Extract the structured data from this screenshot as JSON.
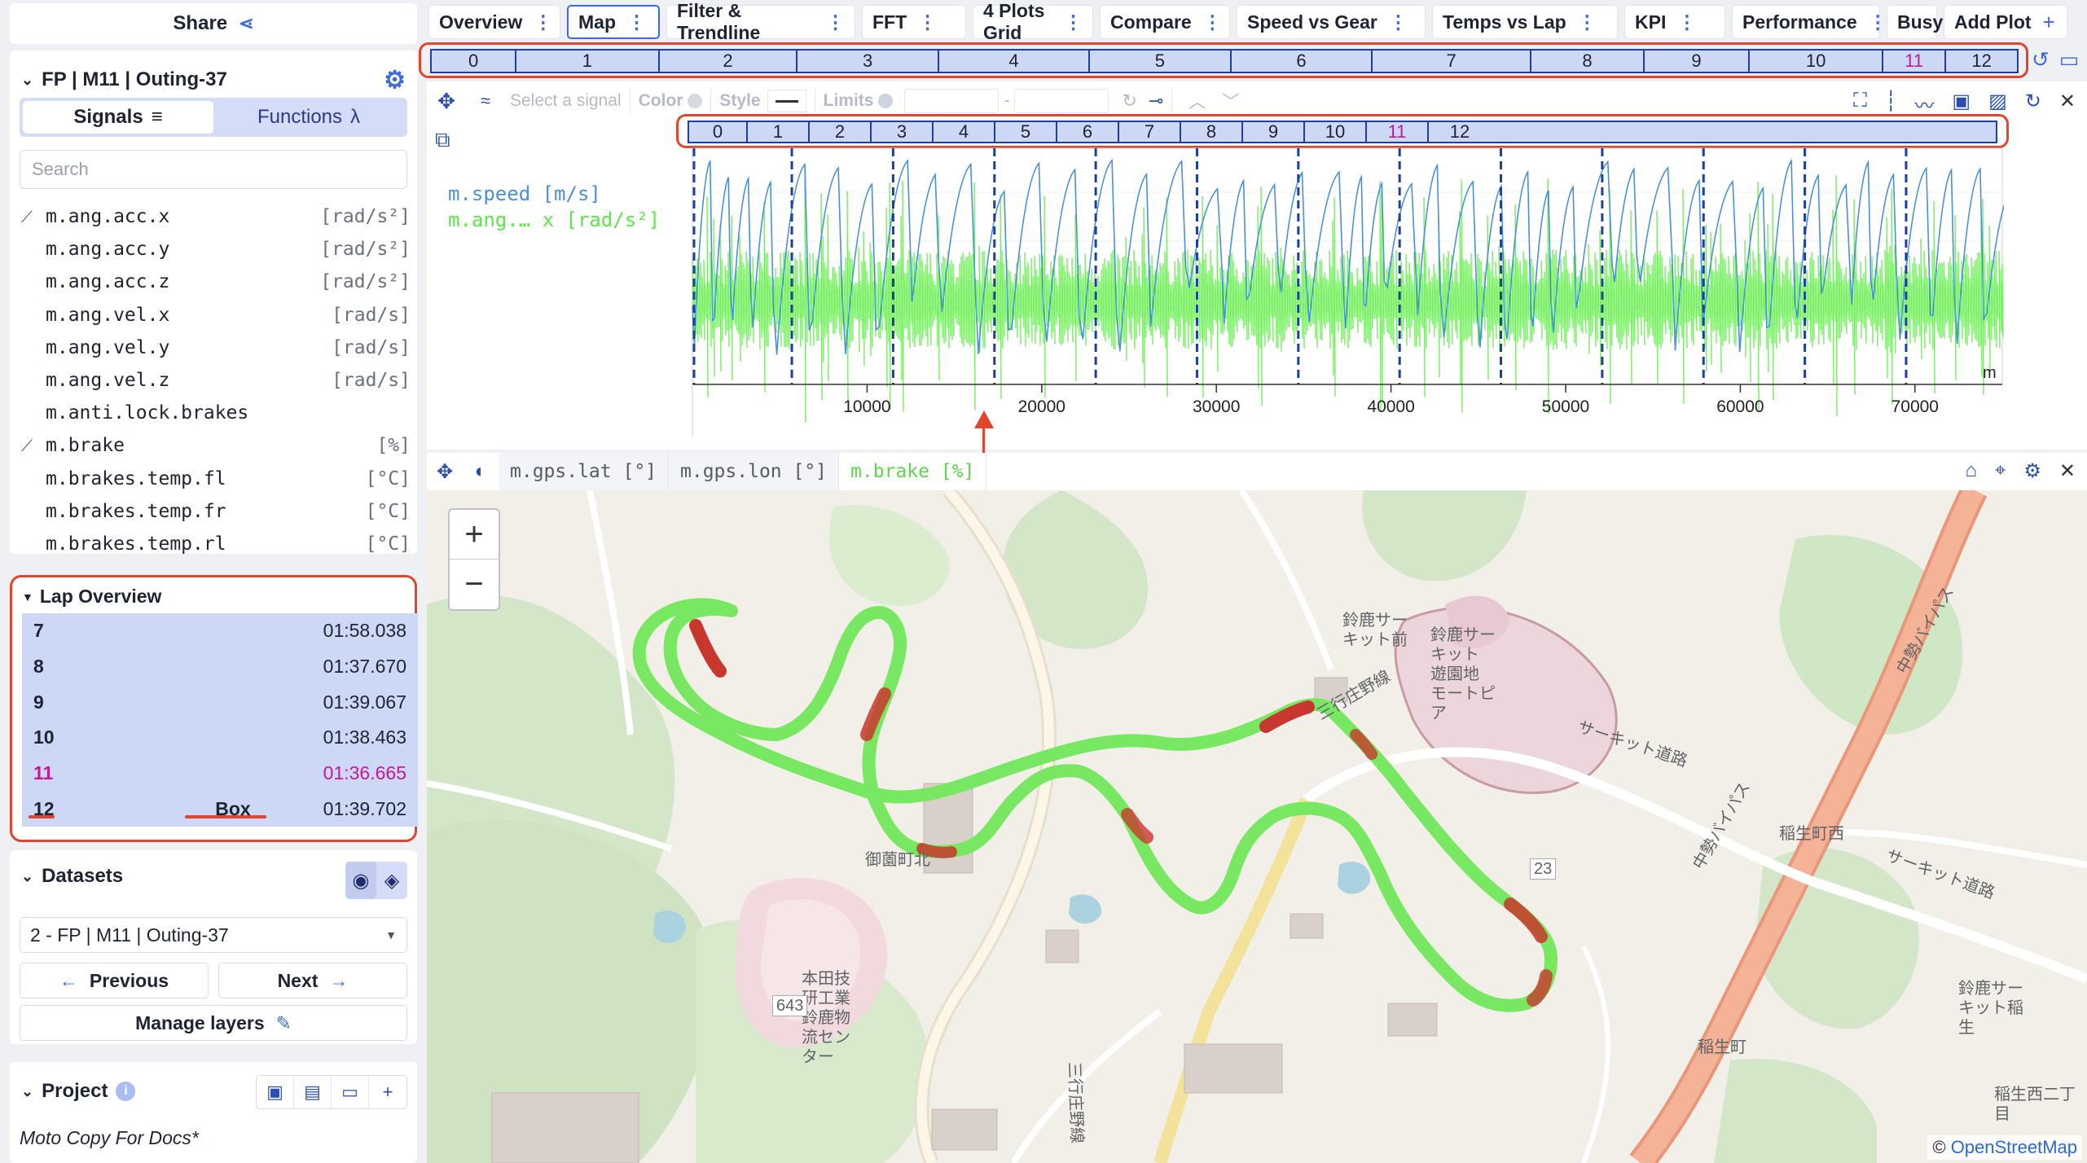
{
  "left": {
    "share_label": "Share",
    "session_title": "FP | M11 | Outing-37",
    "signals_tab": "Signals",
    "functions_tab": "Functions",
    "functions_symbol": "λ",
    "search_placeholder": "Search",
    "signals": [
      {
        "name": "m.ang.acc.x",
        "unit": "[rad/s²]",
        "plotted": true
      },
      {
        "name": "m.ang.acc.y",
        "unit": "[rad/s²]",
        "plotted": false
      },
      {
        "name": "m.ang.acc.z",
        "unit": "[rad/s²]",
        "plotted": false
      },
      {
        "name": "m.ang.vel.x",
        "unit": "[rad/s]",
        "plotted": false
      },
      {
        "name": "m.ang.vel.y",
        "unit": "[rad/s]",
        "plotted": false
      },
      {
        "name": "m.ang.vel.z",
        "unit": "[rad/s]",
        "plotted": false
      },
      {
        "name": "m.anti.lock.brakes",
        "unit": "",
        "plotted": false
      },
      {
        "name": "m.brake",
        "unit": "[%]",
        "plotted": true
      },
      {
        "name": "m.brakes.temp.fl",
        "unit": "[°C]",
        "plotted": false
      },
      {
        "name": "m.brakes.temp.fr",
        "unit": "[°C]",
        "plotted": false
      },
      {
        "name": "m.brakes.temp.rl",
        "unit": "[°C]",
        "plotted": false
      }
    ],
    "lap_overview_title": "Lap Overview",
    "laps": [
      {
        "num": "7",
        "tag": "",
        "time": "01:58.038"
      },
      {
        "num": "8",
        "tag": "",
        "time": "01:37.670"
      },
      {
        "num": "9",
        "tag": "",
        "time": "01:39.067"
      },
      {
        "num": "10",
        "tag": "",
        "time": "01:38.463"
      },
      {
        "num": "11",
        "tag": "",
        "time": "01:36.665"
      },
      {
        "num": "12",
        "tag": "Box",
        "time": "01:39.702"
      }
    ],
    "datasets_title": "Datasets",
    "dataset_selected": "2 - FP | M11 | Outing-37",
    "previous_label": "Previous",
    "next_label": "Next",
    "manage_layers_label": "Manage layers",
    "project_title": "Project",
    "project_name": "Moto Copy For Docs*"
  },
  "tabs": [
    {
      "label": "Overview"
    },
    {
      "label": "Map",
      "active": true
    },
    {
      "label": "Filter & Trendline"
    },
    {
      "label": "FFT"
    },
    {
      "label": "4 Plots Grid"
    },
    {
      "label": "Compare"
    },
    {
      "label": "Speed vs Gear"
    },
    {
      "label": "Temps vs Lap"
    },
    {
      "label": "KPI"
    },
    {
      "label": "Performance"
    },
    {
      "label": "Busy"
    },
    {
      "label": "Add Plot"
    }
  ],
  "lap_strip": [
    "0",
    "1",
    "2",
    "3",
    "4",
    "5",
    "6",
    "7",
    "8",
    "9",
    "10",
    "11",
    "12"
  ],
  "best_lap": "11",
  "plot": {
    "toolbar": {
      "select_signal": "Select a signal",
      "color": "Color",
      "style": "Style",
      "limits": "Limits",
      "dash": "-"
    },
    "legend": [
      {
        "label": "m.speed [m/s]",
        "color": "#4a90d9"
      },
      {
        "label": "m.ang.… x [rad/s²]",
        "color": "#5ce64a"
      }
    ],
    "x_unit": "m",
    "x_ticks": [
      "10000",
      "20000",
      "30000",
      "40000",
      "50000",
      "60000",
      "70000"
    ]
  },
  "chart_data": {
    "type": "line",
    "xlabel": "m",
    "xlim": [
      0,
      75000
    ],
    "xticks": [
      10000,
      20000,
      30000,
      40000,
      50000,
      60000,
      70000
    ],
    "lap_boundaries_m": [
      0,
      5600,
      11400,
      17200,
      23000,
      28800,
      34600,
      40400,
      46200,
      52000,
      57800,
      63600,
      69400
    ],
    "series": [
      {
        "name": "m.speed [m/s]",
        "color": "#4a90d9"
      },
      {
        "name": "m.ang.… x [rad/s²]",
        "color": "#5ce64a"
      }
    ]
  },
  "map": {
    "chips": [
      {
        "label": "m.gps.lat [°]",
        "color": "#555b66"
      },
      {
        "label": "m.gps.lon [°]",
        "color": "#555b66"
      },
      {
        "label": "m.brake [%]",
        "color": "#5cd64a"
      }
    ],
    "zoom_in": "+",
    "zoom_out": "−",
    "attribution_prefix": "©",
    "attribution_link": "OpenStreetMap",
    "labels": [
      "鈴鹿サー\nキット前",
      "鈴鹿サー\nキット\n遊園地\nモートピ\nア",
      "三行庄野線",
      "サーキット道路",
      "稲生町西",
      "御薗町北",
      "本田技\n研工業\n鈴鹿物\n流セン\nター",
      "643",
      "稲生町",
      "23",
      "中勢バイパス",
      "中勢バイパス",
      "鈴鹿サー\nキット稲\n生",
      "稲生西二丁\n目",
      "三行庄野線",
      "サーキット道路"
    ]
  },
  "colors": {
    "accent": "#3b6bd6",
    "highlight": "#e0452d",
    "best": "#c2189b",
    "lap_bg": "#cdd7f6",
    "trace_green": "#6ee85a",
    "trace_red": "#c8372d"
  }
}
